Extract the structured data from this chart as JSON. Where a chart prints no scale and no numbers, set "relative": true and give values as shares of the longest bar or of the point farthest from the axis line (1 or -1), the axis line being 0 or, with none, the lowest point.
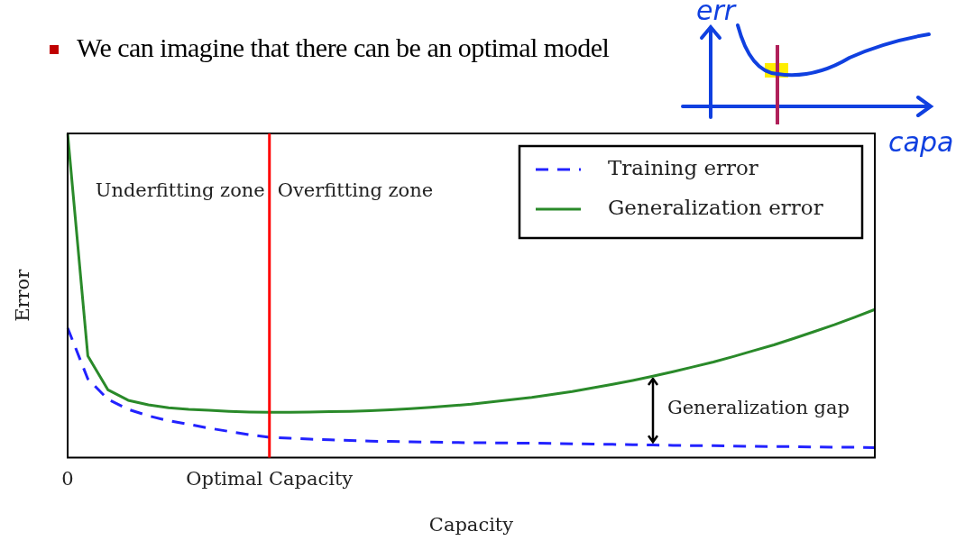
{
  "chart_data": {
    "type": "line",
    "title": "We can imagine that there can be an optimal model",
    "xlabel": "Capacity",
    "ylabel": "Error",
    "relative": true,
    "legend": "top right",
    "marker": "none",
    "grid": false,
    "categories": [
      "0",
      null,
      null,
      null,
      null,
      null,
      null,
      null,
      null,
      null,
      "Optimal Capacity",
      null,
      null,
      null,
      null,
      null,
      null,
      null,
      null,
      null,
      null,
      null,
      null,
      null,
      null,
      null,
      null,
      null,
      null,
      null,
      null,
      null,
      null,
      null,
      null,
      null,
      null,
      null,
      null,
      null,
      null
    ],
    "series": [
      {
        "name": "Training error",
        "color": "#2222ff",
        "line_style": "dashed",
        "values": [
          0.4,
          0.243,
          0.18,
          0.149,
          0.129,
          0.114,
          0.103,
          0.091,
          0.081,
          0.071,
          0.063,
          0.06,
          0.057,
          0.055,
          0.053,
          0.051,
          0.05,
          0.049,
          0.048,
          0.047,
          0.046,
          0.046,
          0.045,
          0.045,
          0.044,
          0.043,
          0.042,
          0.041,
          0.04,
          0.039,
          0.038,
          0.037,
          0.037,
          0.036,
          0.035,
          0.034,
          0.034,
          0.033,
          0.032,
          0.032,
          0.031
        ]
      },
      {
        "name": "Generalization error",
        "color": "#2a8a2a",
        "line_style": "solid",
        "values": [
          1.0,
          0.314,
          0.209,
          0.177,
          0.163,
          0.154,
          0.149,
          0.146,
          0.143,
          0.141,
          0.14,
          0.14,
          0.141,
          0.142,
          0.143,
          0.145,
          0.148,
          0.151,
          0.155,
          0.16,
          0.165,
          0.172,
          0.179,
          0.186,
          0.195,
          0.204,
          0.215,
          0.226,
          0.238,
          0.251,
          0.265,
          0.28,
          0.295,
          0.312,
          0.33,
          0.348,
          0.368,
          0.389,
          0.41,
          0.433,
          0.457
        ]
      }
    ],
    "ref_lines": [
      {
        "axis": "x",
        "value": "Optimal Capacity",
        "color": "#ff0000"
      }
    ],
    "annotations": [
      "Underfitting zone",
      "Overfitting zone",
      "Generalization gap",
      "err",
      "capa"
    ]
  }
}
